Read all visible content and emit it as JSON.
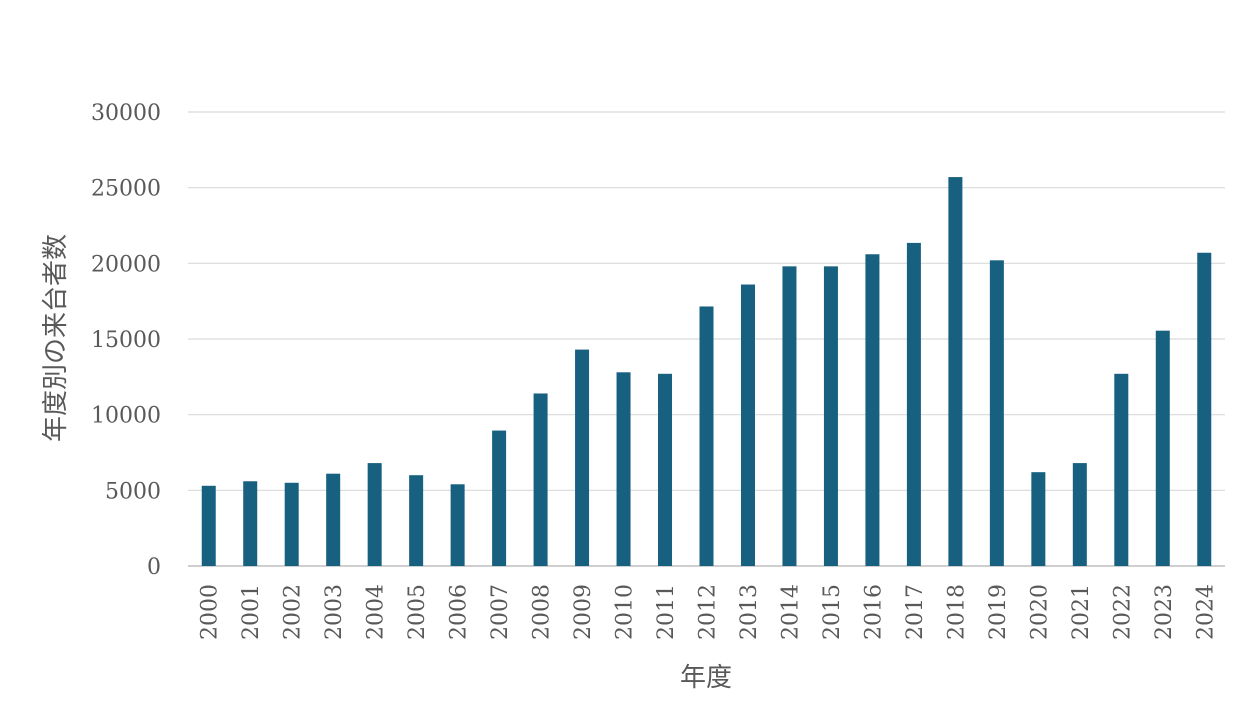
{
  "chart_data": {
    "type": "bar",
    "title": "",
    "xlabel": "年度",
    "ylabel": "年度別の来台者数",
    "ylim": [
      0,
      30000
    ],
    "yticks": [
      0,
      5000,
      10000,
      15000,
      20000,
      25000,
      30000
    ],
    "grid": true,
    "legend": "none",
    "bar_color": "#17607f",
    "categories": [
      "2000",
      "2001",
      "2002",
      "2003",
      "2004",
      "2005",
      "2006",
      "2007",
      "2008",
      "2009",
      "2010",
      "2011",
      "2012",
      "2013",
      "2014",
      "2015",
      "2016",
      "2017",
      "2018",
      "2019",
      "2020",
      "2021",
      "2022",
      "2023",
      "2024"
    ],
    "series": [
      {
        "values": [
          5300,
          5600,
          5500,
          6100,
          6800,
          6000,
          5400,
          8950,
          11400,
          14300,
          12800,
          12700,
          17150,
          18600,
          19800,
          19800,
          20600,
          21350,
          25700,
          20200,
          6200,
          6800,
          12700,
          15550,
          20700
        ]
      }
    ]
  }
}
